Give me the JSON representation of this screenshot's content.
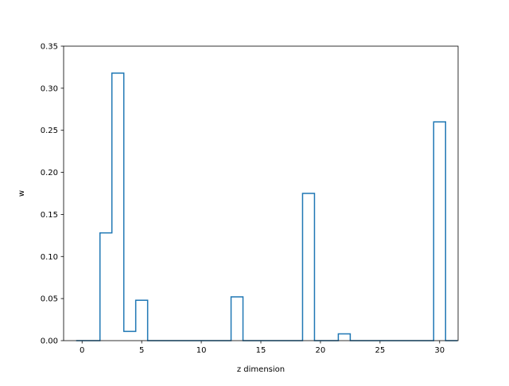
{
  "chart_data": {
    "type": "bar",
    "style": "step-outline",
    "title": "",
    "xlabel": "z dimension",
    "ylabel": "w",
    "xlim": [
      -1.55,
      31.55
    ],
    "ylim": [
      0,
      0.35
    ],
    "x_ticks": [
      0,
      5,
      10,
      15,
      20,
      25,
      30
    ],
    "x_tick_labels": [
      "0",
      "5",
      "10",
      "15",
      "20",
      "25",
      "30"
    ],
    "y_ticks": [
      0,
      0.05,
      0.1,
      0.15,
      0.2,
      0.25,
      0.3,
      0.35
    ],
    "y_tick_labels": [
      "0.00",
      "0.05",
      "0.10",
      "0.15",
      "0.20",
      "0.25",
      "0.30",
      "0.35"
    ],
    "grid": false,
    "line_color": "#1f77b4",
    "x": [
      0,
      1,
      2,
      3,
      4,
      5,
      6,
      7,
      8,
      9,
      10,
      11,
      12,
      13,
      14,
      15,
      16,
      17,
      18,
      19,
      20,
      21,
      22,
      23,
      24,
      25,
      26,
      27,
      28,
      29,
      30,
      31
    ],
    "values": [
      0,
      0,
      0.128,
      0.318,
      0.011,
      0.048,
      0,
      0,
      0,
      0,
      0,
      0,
      0,
      0.052,
      0,
      0,
      0,
      0,
      0,
      0.175,
      0,
      0,
      0.008,
      0,
      0,
      0,
      0,
      0,
      0,
      0,
      0.26,
      0
    ]
  }
}
